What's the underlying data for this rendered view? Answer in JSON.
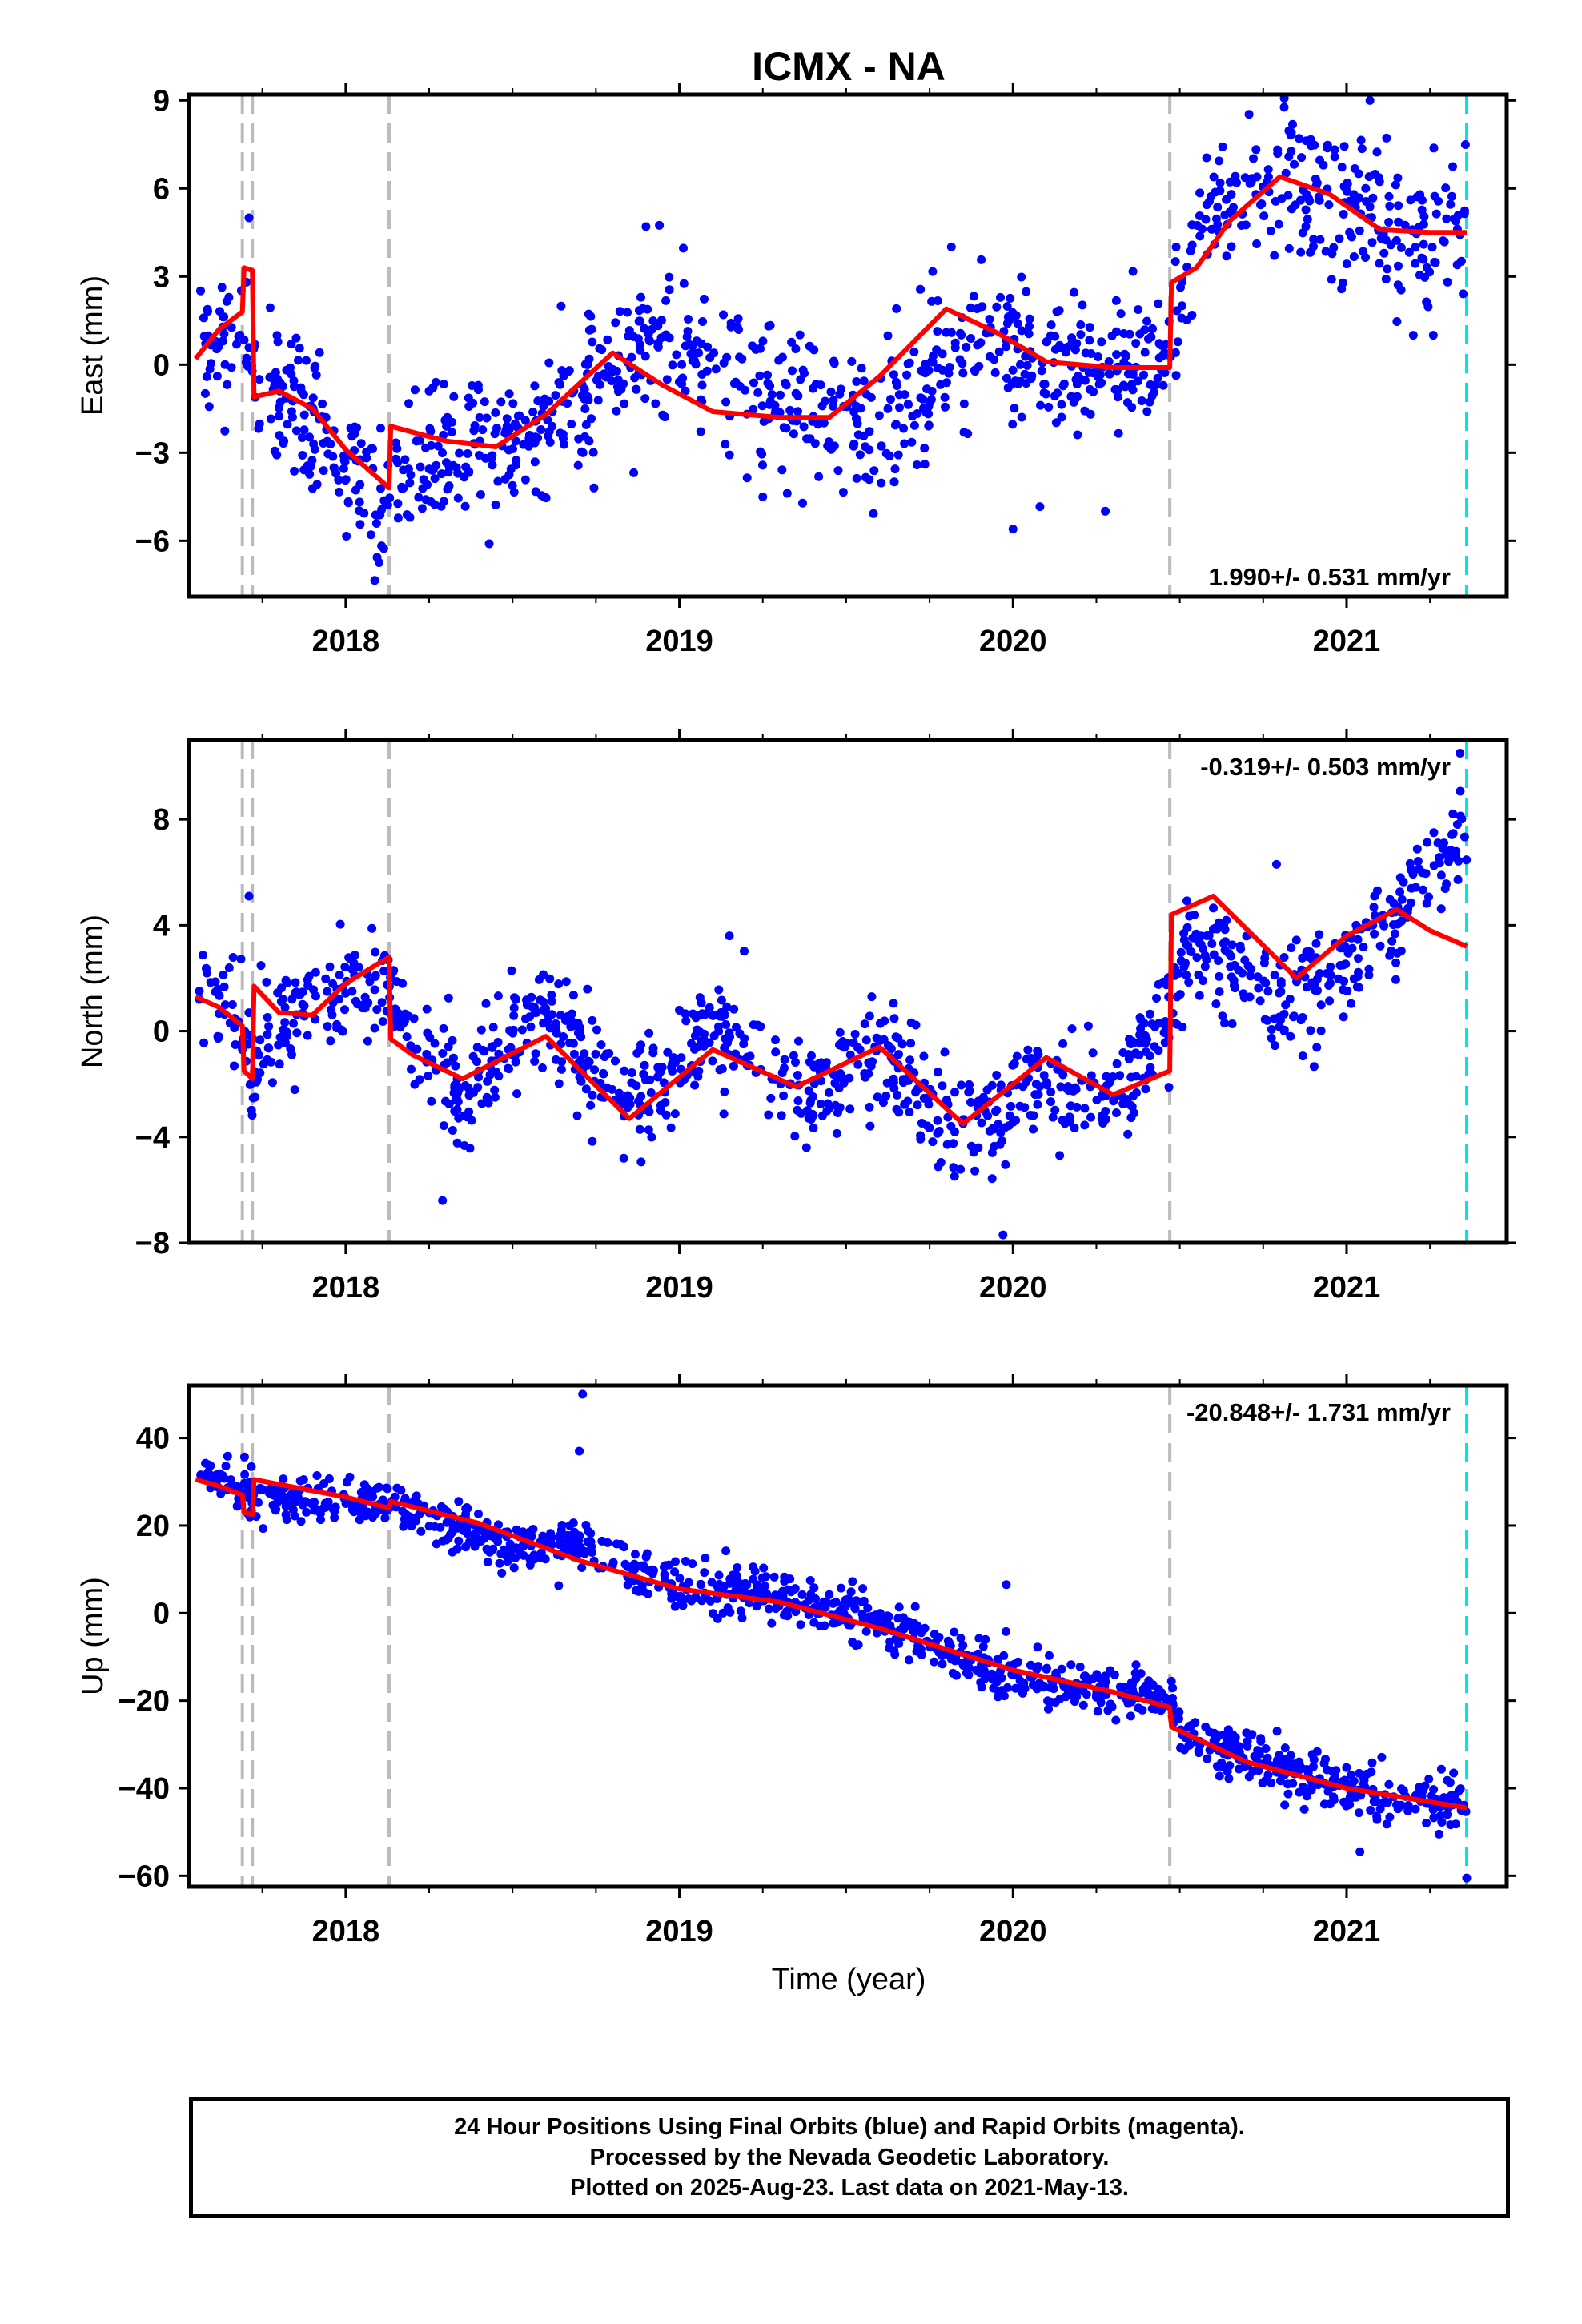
{
  "chart_data": {
    "type": "scatter",
    "title": "ICMX - NA",
    "xlabel": "Time (year)",
    "xlim": [
      2017.53,
      2021.48
    ],
    "x_ticks": [
      2018,
      2019,
      2020,
      2021
    ],
    "series_colors": {
      "final_orbits": "#0000ff",
      "model_fit": "#ff0000"
    },
    "offset_lines": {
      "color": "#bbbbbb",
      "x": [
        2017.69,
        2017.72,
        2018.13,
        2020.47
      ]
    },
    "last_data_line": {
      "color": "#00e5e5",
      "x": 2021.36
    },
    "panels": [
      {
        "id": "east",
        "ylabel": "East (mm)",
        "ylim": [
          -7.9,
          9.2
        ],
        "y_ticks": [
          9,
          6,
          3,
          0,
          -3,
          -6
        ],
        "y_tick_labels": [
          "9",
          "6",
          "3",
          "0",
          "−3",
          "−6"
        ],
        "rate": "1.990+/- 0.531 mm/yr",
        "rate_position": "bottom-right",
        "model_x": [
          2017.55,
          2017.62,
          2017.69,
          2017.695,
          2017.72,
          2017.725,
          2017.8,
          2017.9,
          2018.0,
          2018.13,
          2018.135,
          2018.2,
          2018.3,
          2018.45,
          2018.6,
          2018.8,
          2018.95,
          2019.1,
          2019.3,
          2019.45,
          2019.6,
          2019.8,
          2019.95,
          2020.1,
          2020.3,
          2020.47,
          2020.475,
          2020.55,
          2020.65,
          2020.8,
          2020.95,
          2021.1,
          2021.25,
          2021.36
        ],
        "model_y": [
          0.2,
          1.2,
          1.8,
          3.3,
          3.2,
          -1.1,
          -0.9,
          -1.5,
          -2.9,
          -4.2,
          -2.1,
          -2.3,
          -2.6,
          -2.8,
          -1.7,
          0.4,
          -0.7,
          -1.6,
          -1.8,
          -1.8,
          -0.4,
          1.9,
          1.1,
          0.1,
          -0.1,
          -0.1,
          2.8,
          3.3,
          4.9,
          6.4,
          5.8,
          4.6,
          4.5,
          4.5
        ],
        "trend_x": [
          2017.55,
          2017.69,
          2017.72,
          2017.8,
          2018.13,
          2018.2,
          2018.6,
          2018.9,
          2019.3,
          2019.6,
          2019.9,
          2020.2,
          2020.47,
          2020.55,
          2020.8,
          2021.0,
          2021.2,
          2021.36
        ],
        "trend_y": [
          0.3,
          1.5,
          -0.6,
          -1.2,
          -4.8,
          -2.9,
          -2.3,
          1.4,
          -1.3,
          -2.1,
          1.1,
          -0.4,
          0.5,
          4.9,
          6.1,
          5.6,
          4.3,
          5.0
        ],
        "scatter_sigma": 1.2,
        "outliers": [
          [
            2017.71,
            5.0
          ],
          [
            2018.27,
            -0.6
          ],
          [
            2018.43,
            -6.1
          ],
          [
            2018.9,
            4.7
          ],
          [
            2019.25,
            -4.5
          ],
          [
            2020.0,
            -5.6
          ],
          [
            2021.07,
            9.0
          ],
          [
            2021.2,
            1.0
          ],
          [
            2021.26,
            1.0
          ]
        ]
      },
      {
        "id": "north",
        "ylabel": "North (mm)",
        "ylim": [
          -8.0,
          11.0
        ],
        "y_ticks": [
          8,
          4,
          0,
          -4,
          -8
        ],
        "y_tick_labels": [
          "8",
          "4",
          "0",
          "−4",
          "−8"
        ],
        "rate": "-0.319+/- 0.503 mm/yr",
        "rate_position": "top-right",
        "model_x": [
          2017.55,
          2017.62,
          2017.69,
          2017.695,
          2017.72,
          2017.725,
          2017.8,
          2017.9,
          2018.0,
          2018.13,
          2018.135,
          2018.2,
          2018.35,
          2018.6,
          2018.85,
          2019.1,
          2019.35,
          2019.6,
          2019.85,
          2020.1,
          2020.3,
          2020.47,
          2020.475,
          2020.6,
          2020.85,
          2021.0,
          2021.15,
          2021.25,
          2021.36
        ],
        "model_y": [
          1.3,
          0.9,
          0.2,
          -1.5,
          -1.8,
          1.7,
          0.7,
          0.6,
          1.8,
          2.8,
          -0.3,
          -0.9,
          -1.8,
          -0.2,
          -3.3,
          -0.7,
          -2.1,
          -0.6,
          -3.5,
          -1.0,
          -2.4,
          -1.5,
          4.4,
          5.1,
          2.0,
          3.6,
          4.6,
          3.8,
          3.2
        ],
        "trend_x": [
          2017.55,
          2017.69,
          2017.72,
          2017.8,
          2018.13,
          2018.2,
          2018.35,
          2018.6,
          2018.85,
          2019.1,
          2019.35,
          2019.6,
          2019.85,
          2020.1,
          2020.3,
          2020.47,
          2020.55,
          2020.8,
          2021.0,
          2021.15,
          2021.3,
          2021.36
        ],
        "trend_y": [
          1.3,
          0.3,
          -1.6,
          0.4,
          2.3,
          -0.8,
          -2.4,
          0.9,
          -3.0,
          0.4,
          -2.6,
          -0.7,
          -4.0,
          -1.8,
          -2.4,
          0.6,
          3.6,
          0.8,
          2.9,
          4.3,
          6.8,
          8.3
        ],
        "scatter_sigma": 1.0,
        "outliers": [
          [
            2017.71,
            5.1
          ],
          [
            2018.29,
            -6.4
          ],
          [
            2019.15,
            3.6
          ],
          [
            2019.97,
            -7.7
          ],
          [
            2020.79,
            6.3
          ],
          [
            2021.34,
            10.5
          ]
        ]
      },
      {
        "id": "up",
        "ylabel": "Up (mm)",
        "ylim": [
          -62.5,
          52.0
        ],
        "y_ticks": [
          40,
          20,
          0,
          -20,
          -40,
          -60
        ],
        "y_tick_labels": [
          "40",
          "20",
          "0",
          "−20",
          "−40",
          "−60"
        ],
        "rate": "-20.848+/- 1.731 mm/yr",
        "rate_position": "top-right",
        "model_x": [
          2017.55,
          2017.62,
          2017.69,
          2017.695,
          2017.72,
          2017.725,
          2018.0,
          2018.13,
          2018.135,
          2018.4,
          2018.7,
          2019.0,
          2019.3,
          2019.6,
          2020.0,
          2020.3,
          2020.47,
          2020.475,
          2020.7,
          2021.0,
          2021.36
        ],
        "model_y": [
          30.5,
          29.0,
          27.0,
          23.0,
          22.5,
          30.5,
          26.5,
          24.0,
          25.5,
          20.5,
          12.0,
          5.5,
          2.5,
          -3.5,
          -13.0,
          -18.0,
          -21.5,
          -26.0,
          -34.0,
          -40.0,
          -44.5
        ],
        "trend_x": [
          2017.55,
          2017.7,
          2017.72,
          2018.1,
          2018.13,
          2018.45,
          2018.7,
          2019.0,
          2019.3,
          2019.6,
          2020.0,
          2020.3,
          2020.47,
          2020.5,
          2020.8,
          2021.1,
          2021.36
        ],
        "trend_y": [
          31.0,
          29.0,
          27.0,
          24.0,
          25.0,
          16.0,
          15.0,
          6.0,
          5.0,
          -3.0,
          -15.0,
          -18.0,
          -19.0,
          -27.0,
          -35.0,
          -42.0,
          -44.0
        ],
        "scatter_sigma": 2.8,
        "outliers": [
          [
            2018.71,
            50.0
          ],
          [
            2018.7,
            37.0
          ],
          [
            2019.98,
            6.5
          ],
          [
            2021.04,
            -54.5
          ],
          [
            2021.36,
            -60.5
          ]
        ]
      }
    ]
  },
  "caption": {
    "line1": "24 Hour Positions Using Final Orbits (blue) and Rapid Orbits (magenta).",
    "line2": "Processed by the Nevada Geodetic Laboratory.",
    "line3": "Plotted on 2025-Aug-23. Last data on 2021-May-13."
  }
}
